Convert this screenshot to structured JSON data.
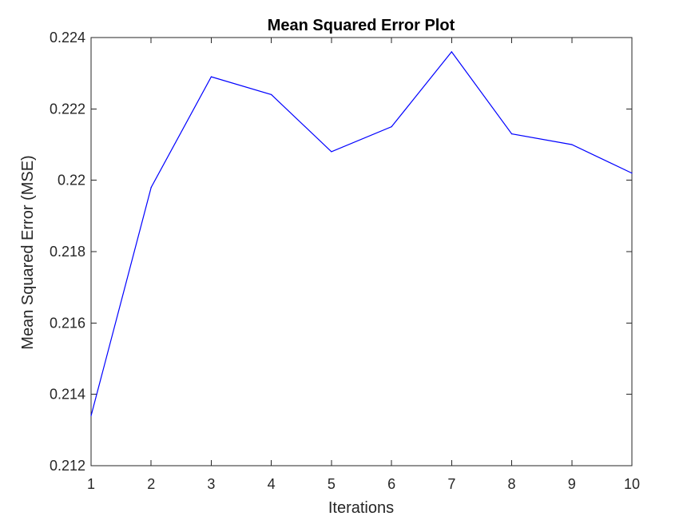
{
  "chart_data": {
    "type": "line",
    "title": "Mean Squared Error Plot",
    "xlabel": "Iterations",
    "ylabel": "Mean Squared Error (MSE)",
    "xlim": [
      1,
      10
    ],
    "ylim": [
      0.212,
      0.224
    ],
    "x_ticks": [
      1,
      2,
      3,
      4,
      5,
      6,
      7,
      8,
      9,
      10
    ],
    "x_tick_labels": [
      "1",
      "2",
      "3",
      "4",
      "5",
      "6",
      "7",
      "8",
      "9",
      "10"
    ],
    "y_ticks": [
      0.212,
      0.214,
      0.216,
      0.218,
      0.22,
      0.222,
      0.224
    ],
    "y_tick_labels": [
      "0.212",
      "0.214",
      "0.216",
      "0.218",
      "0.22",
      "0.222",
      "0.224"
    ],
    "grid": false,
    "legend": "none",
    "series": [
      {
        "color": "#0000ff",
        "x": [
          1,
          2,
          3,
          4,
          5,
          6,
          7,
          8,
          9,
          10
        ],
        "values": [
          0.2134,
          0.2198,
          0.2229,
          0.2224,
          0.2208,
          0.2215,
          0.2236,
          0.2213,
          0.221,
          0.2202
        ]
      }
    ]
  },
  "colors": {
    "axis": "#262626",
    "background": "#ffffff",
    "line": "#0000ff"
  }
}
